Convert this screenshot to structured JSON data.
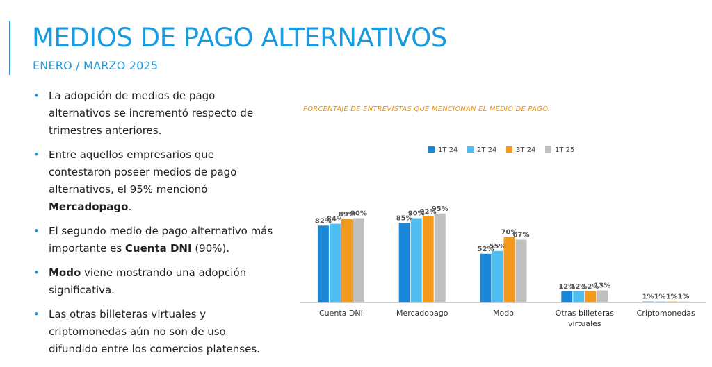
{
  "slide": {
    "title": "MEDIOS DE PAGO ALTERNATIVOS",
    "subtitle": "ENERO / MARZO 2025"
  },
  "bullets": [
    {
      "parts": [
        {
          "t": "La adopción de medios de pago alternativos se incrementó respecto de trimestres anteriores.",
          "b": false
        }
      ]
    },
    {
      "parts": [
        {
          "t": "Entre aquellos empresarios que contestaron poseer medios de pago alternativos, el 95% mencionó ",
          "b": false
        },
        {
          "t": "Mercadopago",
          "b": true
        },
        {
          "t": ".",
          "b": false
        }
      ]
    },
    {
      "parts": [
        {
          "t": "El segundo medio de pago alternativo más importante es ",
          "b": false
        },
        {
          "t": "Cuenta DNI",
          "b": true
        },
        {
          "t": " (90%).",
          "b": false
        }
      ]
    },
    {
      "parts": [
        {
          "t": "Modo",
          "b": true
        },
        {
          "t": " viene mostrando una adopción significativa.",
          "b": false
        }
      ]
    },
    {
      "parts": [
        {
          "t": "Las otras billeteras virtuales y criptomonedas aún no son de uso difundido entre los comercios platenses.",
          "b": false
        }
      ]
    }
  ],
  "chart_data": {
    "type": "bar",
    "title": "PORCENTAJE DE ENTREVISTAS QUE MENCIONAN EL MEDIO DE PAGO.",
    "categories": [
      "Cuenta DNI",
      "Mercadopago",
      "Modo",
      "Otras billeteras virtuales",
      "Criptomonedas"
    ],
    "series": [
      {
        "name": "1T 24",
        "color": "#1b87d9",
        "values": [
          82,
          85,
          52,
          12,
          1
        ]
      },
      {
        "name": "2T 24",
        "color": "#4fbdf0",
        "values": [
          84,
          90,
          55,
          12,
          1
        ]
      },
      {
        "name": "3T 24",
        "color": "#f39a1c",
        "values": [
          89,
          92,
          70,
          12,
          1
        ]
      },
      {
        "name": "1T 25",
        "color": "#bfbfbf",
        "values": [
          90,
          95,
          67,
          13,
          1
        ]
      }
    ],
    "value_suffix": "%",
    "ylim": [
      0,
      100
    ],
    "grid": false,
    "legend_position": "top"
  }
}
